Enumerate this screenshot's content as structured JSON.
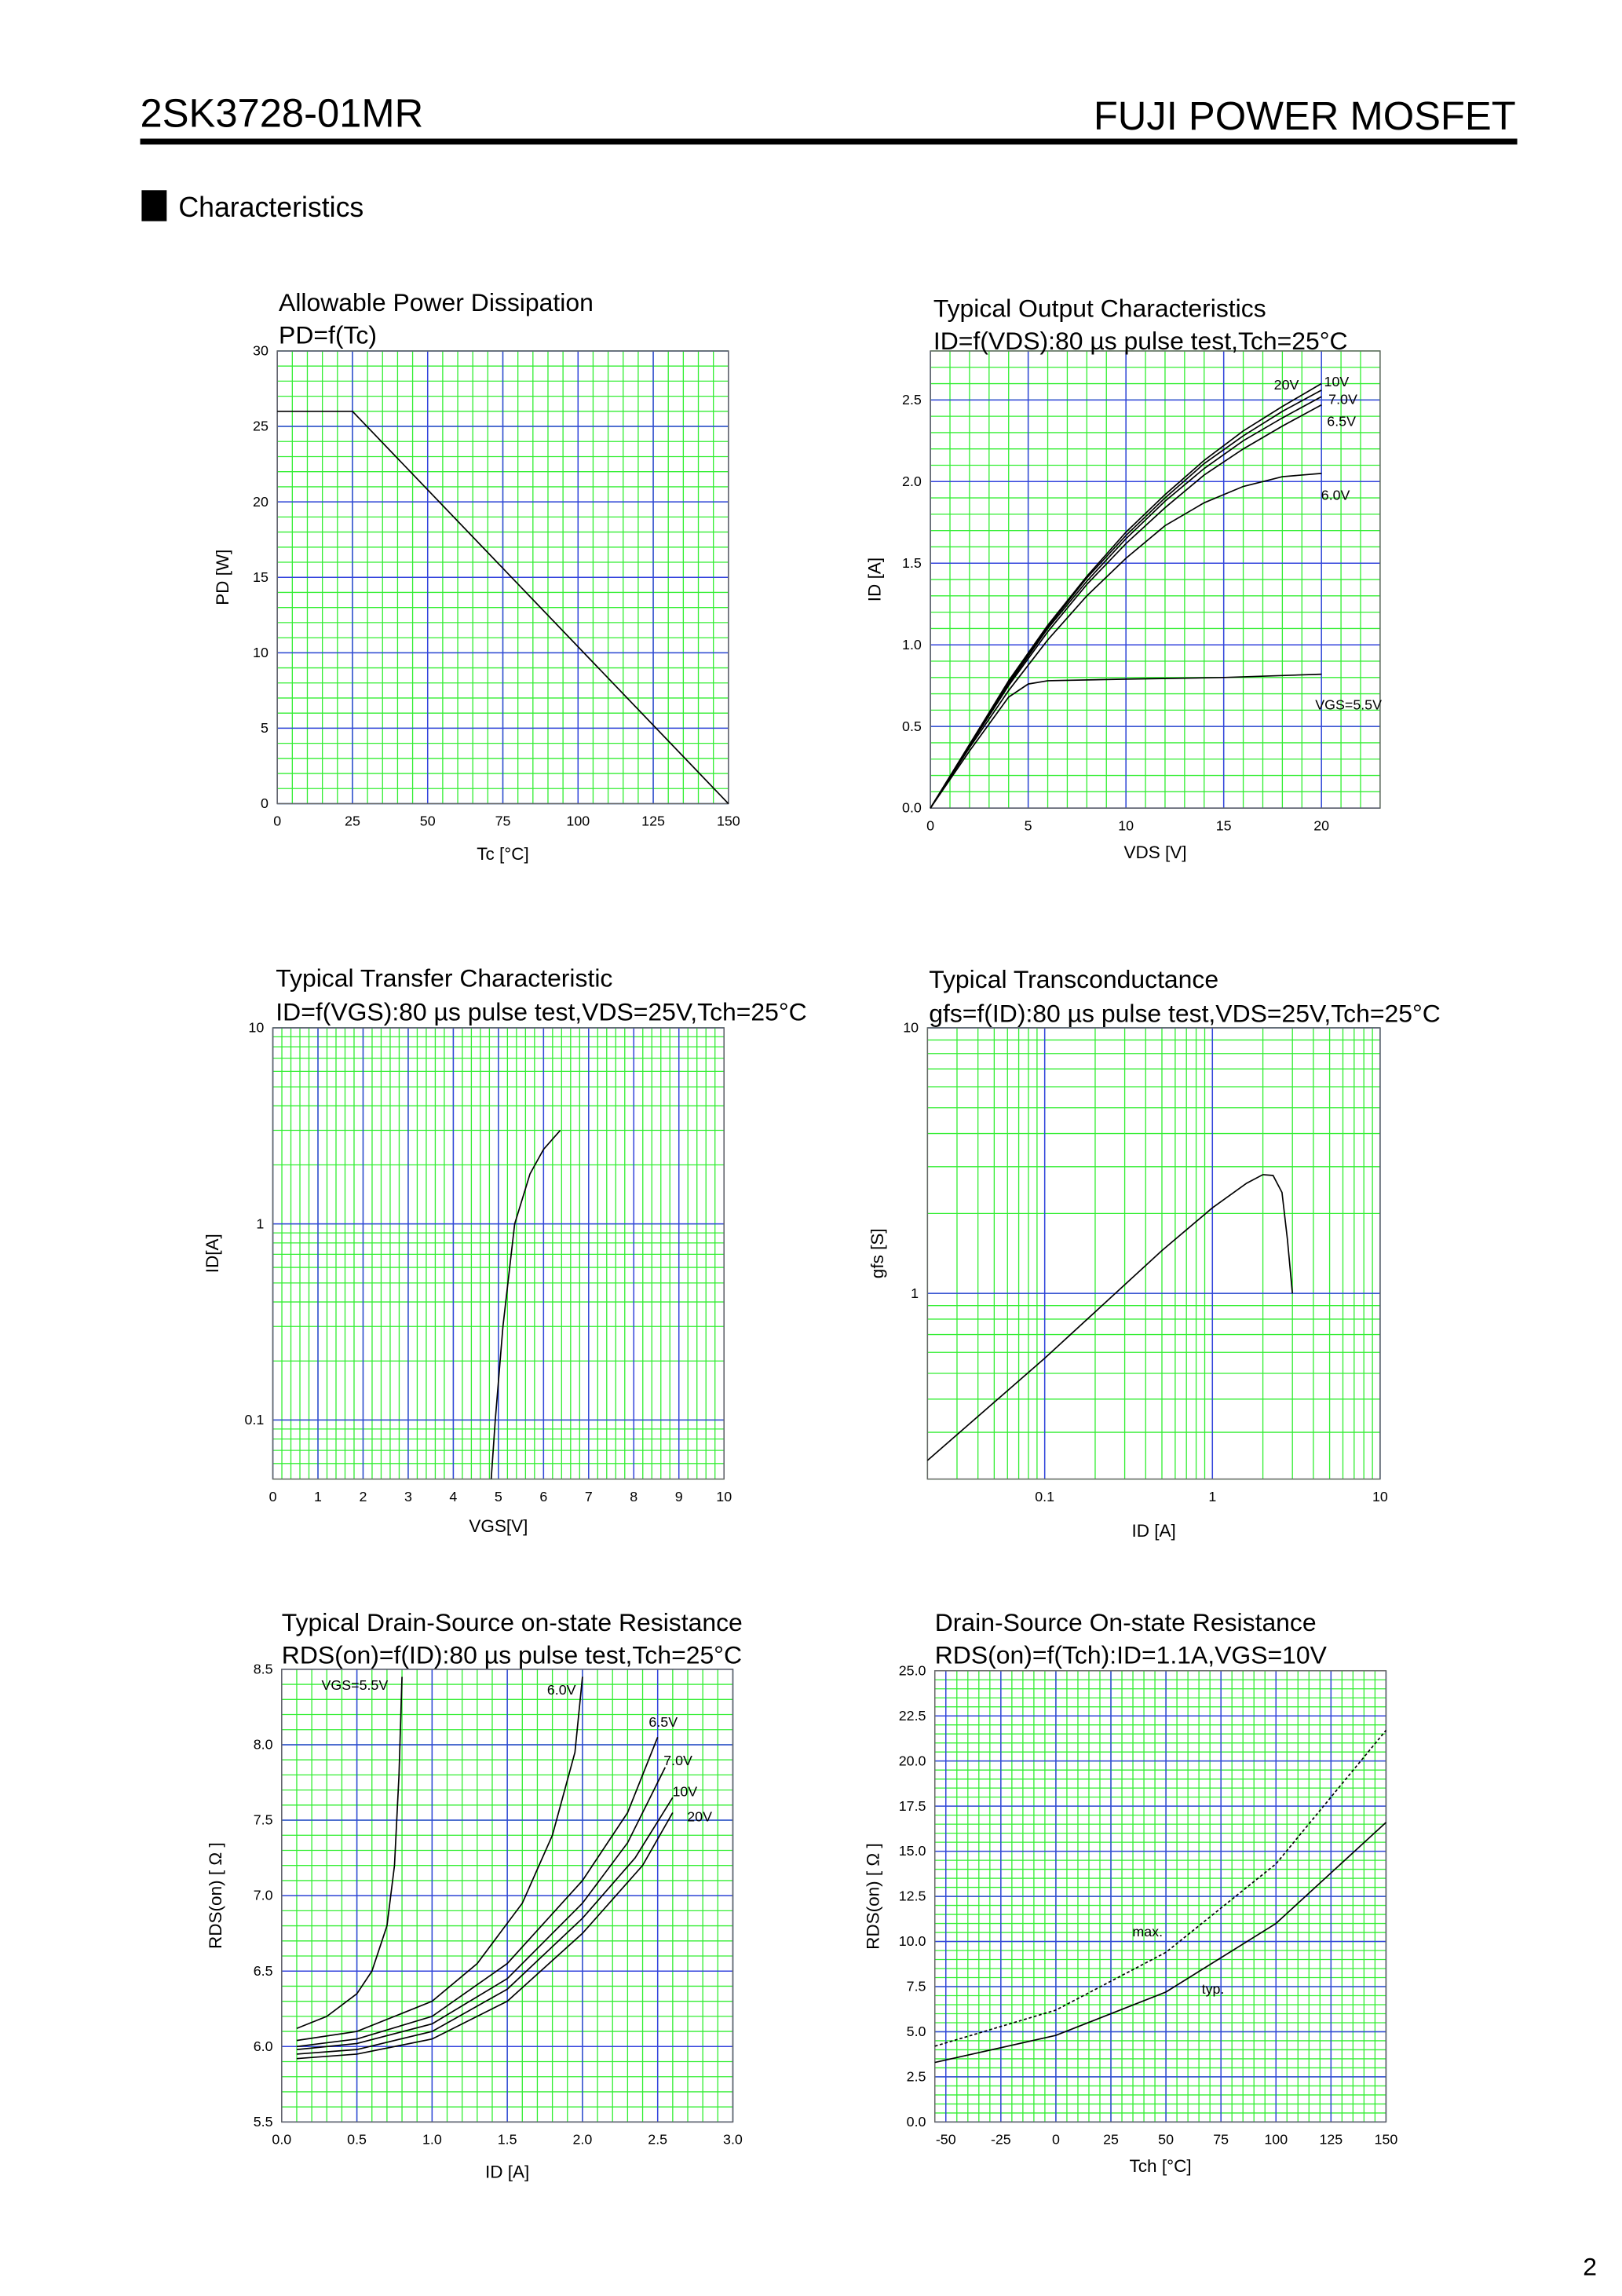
{
  "header": {
    "part": "2SK3728-01MR",
    "brand": "FUJI POWER MOSFET"
  },
  "section": "Characteristics",
  "page_number": "2",
  "chart_data": [
    {
      "type": "line",
      "title": "Allowable Power Dissipation",
      "subtitle": "PD=f(Tc)",
      "xlabel": "Tc [°C]",
      "ylabel": "PD [W]",
      "xlim": [
        0,
        150
      ],
      "ylim": [
        0,
        30
      ],
      "xticks": [
        0,
        25,
        50,
        75,
        100,
        125,
        150
      ],
      "yticks": [
        0,
        5,
        10,
        15,
        20,
        25,
        30
      ],
      "x_minor": 5,
      "y_minor": 5,
      "grid_color": "#33ee33",
      "major_grid_color": "#3344dd",
      "series": [
        {
          "color": "#000000",
          "x": [
            0,
            25,
            150
          ],
          "values": [
            26,
            26,
            0
          ]
        }
      ]
    },
    {
      "type": "line",
      "title": "Typical Output Characteristics",
      "subtitle": "ID=f(VDS):80 µs pulse test,Tch=25°C",
      "xlabel": "VDS [V]",
      "ylabel": "ID [A]",
      "xlim": [
        0,
        23
      ],
      "ylim": [
        0,
        2.8
      ],
      "xticks": [
        0,
        5,
        10,
        15,
        20
      ],
      "yticks": [
        {
          "value": 0,
          "label": "0.0"
        },
        0.5,
        {
          "value": 1,
          "label": "1.0"
        },
        1.5,
        {
          "value": 2,
          "label": "2.0"
        },
        2.5
      ],
      "x_minor": 5,
      "y_minor": 5,
      "grid_color": "#33ee33",
      "major_grid_color": "#3344dd",
      "series": [
        {
          "name": "VGS=5.5V",
          "color": "#000000",
          "x": [
            0,
            2,
            4,
            5,
            6,
            10,
            15,
            20
          ],
          "values": [
            0,
            0.35,
            0.68,
            0.76,
            0.78,
            0.79,
            0.8,
            0.82
          ]
        },
        {
          "name": "6.0V",
          "color": "#000000",
          "x": [
            0,
            2,
            4,
            6,
            8,
            10,
            12,
            14,
            16,
            18,
            20
          ],
          "values": [
            0,
            0.37,
            0.72,
            1.03,
            1.3,
            1.53,
            1.73,
            1.87,
            1.97,
            2.03,
            2.05
          ]
        },
        {
          "name": "6.5V",
          "color": "#000000",
          "x": [
            0,
            2,
            4,
            6,
            8,
            10,
            12,
            14,
            16,
            18,
            20
          ],
          "values": [
            0,
            0.38,
            0.75,
            1.08,
            1.37,
            1.62,
            1.84,
            2.04,
            2.2,
            2.34,
            2.47
          ]
        },
        {
          "name": "7.0V",
          "color": "#000000",
          "x": [
            0,
            2,
            4,
            6,
            8,
            10,
            12,
            14,
            16,
            18,
            20
          ],
          "values": [
            0,
            0.38,
            0.76,
            1.1,
            1.39,
            1.65,
            1.88,
            2.08,
            2.25,
            2.39,
            2.52
          ]
        },
        {
          "name": "10V",
          "color": "#000000",
          "x": [
            0,
            2,
            4,
            6,
            8,
            10,
            12,
            14,
            16,
            18,
            20
          ],
          "values": [
            0,
            0.39,
            0.77,
            1.11,
            1.41,
            1.67,
            1.9,
            2.11,
            2.28,
            2.43,
            2.56
          ]
        },
        {
          "name": "20V",
          "color": "#000000",
          "x": [
            0,
            2,
            4,
            6,
            8,
            10,
            12,
            14,
            16,
            18,
            20
          ],
          "values": [
            0,
            0.39,
            0.78,
            1.12,
            1.42,
            1.69,
            1.92,
            2.13,
            2.31,
            2.46,
            2.6
          ]
        }
      ]
    },
    {
      "type": "line",
      "title": "Typical Transfer Characteristic",
      "subtitle": "ID=f(VGS):80 µs pulse test,VDS=25V,Tch=25°C",
      "xlabel": "VGS[V]",
      "ylabel": "ID[A]",
      "xlim": [
        0,
        10
      ],
      "ylim": [
        0.05,
        10
      ],
      "xticks": [
        0,
        1,
        2,
        3,
        4,
        5,
        6,
        7,
        8,
        9,
        10
      ],
      "yticks": [
        0.1,
        1,
        10
      ],
      "ylog": true,
      "x_minor": 5,
      "grid_color": "#33ee33",
      "major_grid_color": "#3344dd",
      "series": [
        {
          "color": "#000000",
          "x": [
            4.84,
            4.93,
            5.1,
            5.36,
            5.7,
            6.0,
            6.37
          ],
          "values": [
            0.05,
            0.1,
            0.3,
            1,
            1.8,
            2.4,
            3
          ]
        }
      ]
    },
    {
      "type": "line",
      "title": "Typical Transconductance",
      "subtitle": "gfs=f(ID):80 µs pulse test,VDS=25V,Tch=25°C",
      "xlabel": "ID [A]",
      "ylabel": "gfs [S]",
      "xlim": [
        0.02,
        10
      ],
      "ylim": [
        0.2,
        10
      ],
      "xticks": [
        0.1,
        1,
        10
      ],
      "yticks": [
        1,
        10
      ],
      "xlog": true,
      "ylog": true,
      "grid_color": "#33ee33",
      "major_grid_color": "#3344dd",
      "series": [
        {
          "color": "#000000",
          "x": [
            0.02,
            0.1,
            0.5,
            1,
            1.6,
            2.0,
            2.3,
            2.6,
            2.8,
            3.0
          ],
          "values": [
            0.235,
            0.57,
            1.45,
            2.1,
            2.6,
            2.8,
            2.78,
            2.4,
            1.6,
            1.0
          ]
        }
      ]
    },
    {
      "type": "line",
      "title": "Typical Drain-Source on-state Resistance",
      "subtitle": "RDS(on)=f(ID):80  µs pulse test,Tch=25°C",
      "xlabel": "ID [A]",
      "ylabel": "RDS(on) [ Ω ]",
      "xlim": [
        0,
        3
      ],
      "ylim": [
        5.5,
        8.5
      ],
      "xticks": [
        {
          "value": 0,
          "label": "0.0"
        },
        0.5,
        {
          "value": 1,
          "label": "1.0"
        },
        1.5,
        {
          "value": 2,
          "label": "2.0"
        },
        2.5,
        {
          "value": 3,
          "label": "3.0"
        }
      ],
      "yticks": [
        5.5,
        {
          "value": 6,
          "label": "6.0"
        },
        6.5,
        {
          "value": 7,
          "label": "7.0"
        },
        7.5,
        {
          "value": 8,
          "label": "8.0"
        },
        8.5
      ],
      "x_minor": 5,
      "y_minor": 5,
      "grid_color": "#33ee33",
      "major_grid_color": "#3344dd",
      "series": [
        {
          "name": "VGS=5.5V",
          "color": "#000000",
          "x": [
            0.1,
            0.3,
            0.5,
            0.6,
            0.7,
            0.75,
            0.78,
            0.8
          ],
          "values": [
            6.12,
            6.2,
            6.35,
            6.5,
            6.8,
            7.2,
            7.8,
            8.45
          ]
        },
        {
          "name": "6.0V",
          "color": "#000000",
          "x": [
            0.1,
            0.5,
            1.0,
            1.3,
            1.6,
            1.8,
            1.95,
            2.0
          ],
          "values": [
            6.04,
            6.1,
            6.3,
            6.55,
            6.95,
            7.4,
            7.95,
            8.45
          ]
        },
        {
          "name": "6.5V",
          "color": "#000000",
          "x": [
            0.1,
            0.5,
            1.0,
            1.5,
            2.0,
            2.3,
            2.5
          ],
          "values": [
            6.0,
            6.05,
            6.2,
            6.55,
            7.1,
            7.55,
            8.05
          ]
        },
        {
          "name": "7.0V",
          "color": "#000000",
          "x": [
            0.1,
            0.5,
            1.0,
            1.5,
            2.0,
            2.3,
            2.55
          ],
          "values": [
            5.98,
            6.02,
            6.15,
            6.45,
            6.95,
            7.35,
            7.85
          ]
        },
        {
          "name": "10V",
          "color": "#000000",
          "x": [
            0.1,
            0.5,
            1.0,
            1.5,
            2.0,
            2.35,
            2.6
          ],
          "values": [
            5.95,
            5.98,
            6.1,
            6.38,
            6.85,
            7.25,
            7.65
          ]
        },
        {
          "name": "20V",
          "color": "#000000",
          "x": [
            0.1,
            0.5,
            1.0,
            1.5,
            2.0,
            2.4,
            2.6
          ],
          "values": [
            5.92,
            5.95,
            6.05,
            6.3,
            6.75,
            7.2,
            7.55
          ]
        }
      ]
    },
    {
      "type": "line",
      "title": "Drain-Source On-state Resistance",
      "subtitle": "RDS(on)=f(Tch):ID=1.1A,VGS=10V",
      "xlabel": "Tch [°C]",
      "ylabel": "RDS(on) [ Ω ]",
      "xlim": [
        -55,
        150
      ],
      "ylim": [
        0,
        25
      ],
      "xticks": [
        -50,
        -25,
        0,
        25,
        50,
        75,
        100,
        125,
        150
      ],
      "yticks": [
        {
          "value": 0,
          "label": "0.0"
        },
        2.5,
        {
          "value": 5,
          "label": "5.0"
        },
        7.5,
        {
          "value": 10,
          "label": "10.0"
        },
        12.5,
        {
          "value": 15,
          "label": "15.0"
        },
        17.5,
        {
          "value": 20,
          "label": "20.0"
        },
        22.5,
        {
          "value": 25,
          "label": "25.0"
        }
      ],
      "x_minor": 5,
      "y_minor": 5,
      "grid_color": "#33ee33",
      "major_grid_color": "#3344dd",
      "series": [
        {
          "name": "max.",
          "color": "#000000",
          "style": "dashed",
          "x": [
            -55,
            0,
            50,
            100,
            150
          ],
          "values": [
            4.2,
            6.2,
            9.4,
            14.3,
            21.7
          ]
        },
        {
          "name": "typ.",
          "color": "#000000",
          "x": [
            -55,
            0,
            50,
            100,
            150
          ],
          "values": [
            3.3,
            4.8,
            7.2,
            11,
            16.6
          ]
        }
      ]
    }
  ]
}
